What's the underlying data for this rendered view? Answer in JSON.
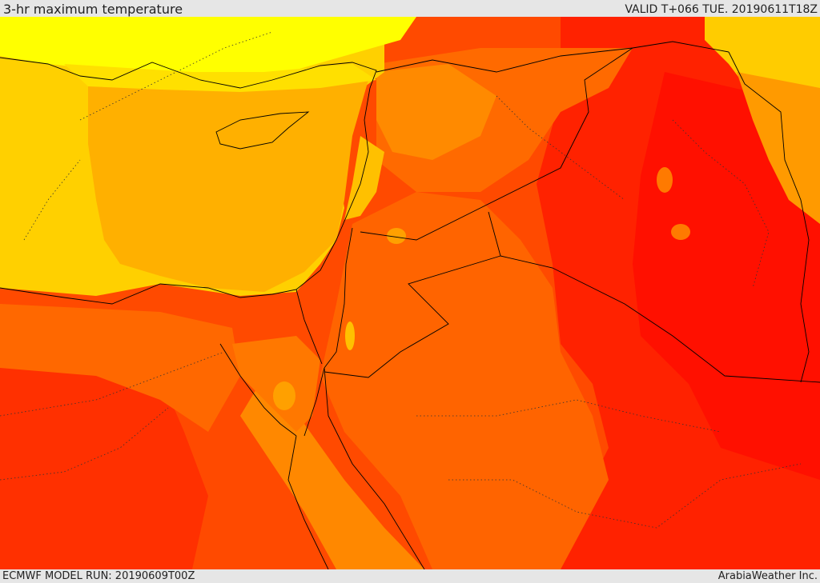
{
  "header": {
    "title": "3-hr maximum temperature",
    "valid": "VALID T+066 TUE. 20190611T18Z"
  },
  "footer": {
    "model_run": "ECMWF MODEL RUN: 20190609T00Z",
    "credit": "ArabiaWeather Inc."
  },
  "palette": {
    "yellow": "#ffff00",
    "gold": "#ffd700",
    "amber": "#ffb000",
    "orange": "#ff8c00",
    "dark_orange": "#ff6a00",
    "red_orange": "#ff4500",
    "red": "#ff2a00",
    "deep_red": "#ff1200",
    "border": "#000000"
  }
}
